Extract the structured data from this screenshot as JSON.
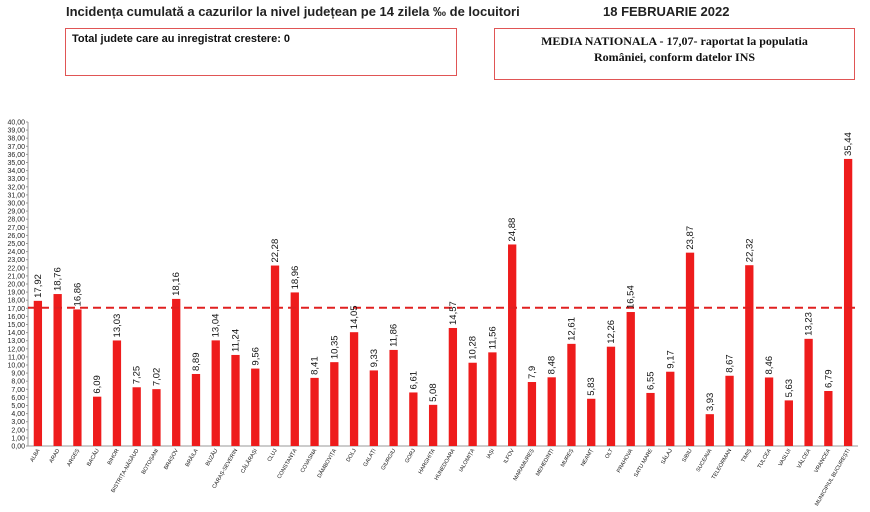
{
  "header": {
    "title": "Incidența cumulată a cazurilor la nivel județean pe 14 zilela ‰ de locuitori",
    "date": "18 FEBRUARIE 2022"
  },
  "info_left": "Total judete care au inregistrat crestere: 0",
  "info_right": {
    "line1": "MEDIA NATIONALA - 17,07-  raportat la populatia",
    "line2": "României, conform datelor INS"
  },
  "colors": {
    "bar": "#ee1c1c",
    "reference_line": "#e02020",
    "box_border": "#e05555"
  },
  "chart_data": {
    "type": "bar",
    "categories": [
      "ALBA",
      "ARAD",
      "ARGEȘ",
      "BACĂU",
      "BIHOR",
      "BISTRIȚA-NĂSĂUD",
      "BOTOȘANI",
      "BRAȘOV",
      "BRĂILA",
      "BUZĂU",
      "CARAȘ-SEVERIN",
      "CĂLĂRAȘI",
      "CLUJ",
      "CONSTANȚA",
      "COVASNA",
      "DÂMBOVIȚA",
      "DOLJ",
      "GALAȚI",
      "GIURGIU",
      "GORJ",
      "HARGHITA",
      "HUNEDOARA",
      "IALOMIȚA",
      "IAȘI",
      "ILFOV",
      "MARAMUREȘ",
      "MEHEDINȚI",
      "MUREȘ",
      "NEAMȚ",
      "OLT",
      "PRAHOVA",
      "SATU MARE",
      "SĂLAJ",
      "SIBIU",
      "SUCEAVA",
      "TELEORMAN",
      "TIMIȘ",
      "TULCEA",
      "VASLUI",
      "VÂLCEA",
      "VRANCEA",
      "MUNICIPIUL BUCUREȘTI"
    ],
    "values": [
      17.92,
      18.76,
      16.86,
      6.09,
      13.03,
      7.25,
      7.02,
      18.16,
      8.89,
      13.04,
      11.24,
      9.56,
      22.28,
      18.96,
      8.41,
      10.35,
      14.05,
      9.33,
      11.86,
      6.61,
      5.08,
      14.57,
      10.28,
      11.56,
      24.88,
      7.9,
      8.48,
      12.61,
      5.83,
      12.26,
      16.54,
      6.55,
      9.17,
      23.87,
      3.93,
      8.67,
      22.32,
      8.46,
      5.63,
      13.23,
      6.79,
      35.44
    ],
    "value_labels": [
      "17,92",
      "18,76",
      "16,86",
      "6,09",
      "13,03",
      "7,25",
      "7,02",
      "18,16",
      "8,89",
      "13,04",
      "11,24",
      "9,56",
      "22,28",
      "18,96",
      "8,41",
      "10,35",
      "14,05",
      "9,33",
      "11,86",
      "6,61",
      "5,08",
      "14,57",
      "10,28",
      "11,56",
      "24,88",
      "7,9",
      "8,48",
      "12,61",
      "5,83",
      "12,26",
      "16,54",
      "6,55",
      "9,17",
      "23,87",
      "3,93",
      "8,67",
      "22,32",
      "8,46",
      "5,63",
      "13,23",
      "6,79",
      "35,44"
    ],
    "ylim": [
      0,
      40
    ],
    "ytick_step": 1,
    "yticks": [
      "0,00",
      "1,00",
      "2,00",
      "3,00",
      "4,00",
      "5,00",
      "6,00",
      "7,00",
      "8,00",
      "9,00",
      "10,00",
      "11,00",
      "12,00",
      "13,00",
      "14,00",
      "15,00",
      "16,00",
      "17,00",
      "18,00",
      "19,00",
      "20,00",
      "21,00",
      "22,00",
      "23,00",
      "24,00",
      "25,00",
      "26,00",
      "27,00",
      "28,00",
      "29,00",
      "30,00",
      "31,00",
      "32,00",
      "33,00",
      "34,00",
      "35,00",
      "36,00",
      "37,00",
      "38,00",
      "39,00",
      "40,00"
    ],
    "reference_line": 17.07,
    "grid": false,
    "legend": "none"
  }
}
